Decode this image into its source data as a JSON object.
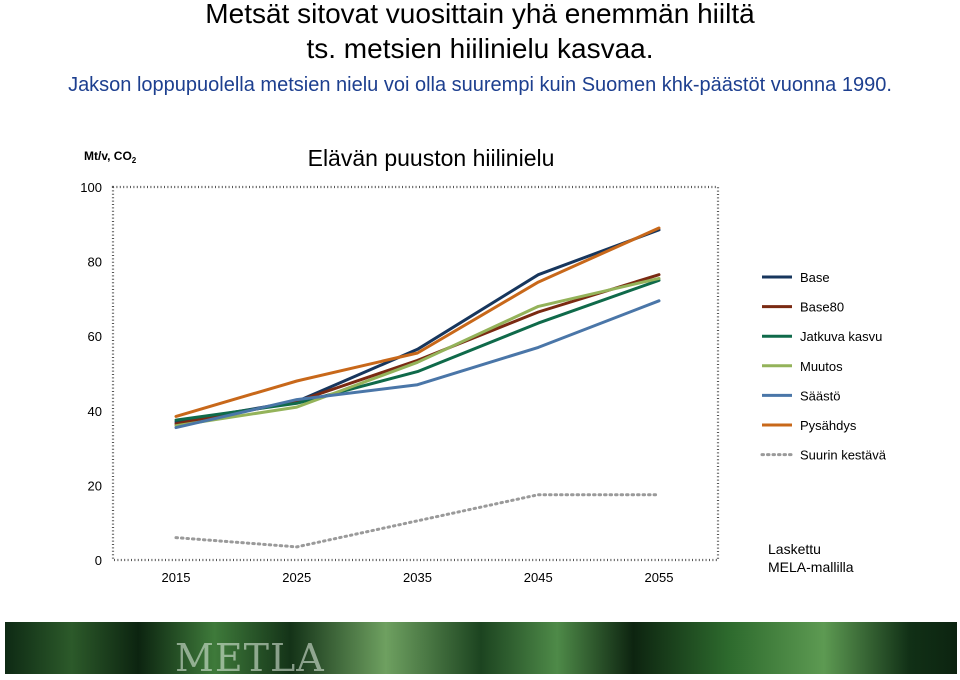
{
  "header": {
    "title_line1": "Metsät sitovat vuosittain yhä enemmän hiiltä",
    "title_line2": "ts. metsien hiilinielu kasvaa.",
    "subtitle": "Jakson loppupuolella metsien nielu voi olla suurempi kuin Suomen khk-päästöt vuonna 1990."
  },
  "chart_data": {
    "type": "line",
    "title": "Elävän puuston hiilinielu",
    "ylabel": "Mt/v, CO",
    "ylabel_subscript": "2",
    "xlabel": "",
    "ylim": [
      0,
      100
    ],
    "yticks": [
      0,
      20,
      40,
      60,
      80,
      100
    ],
    "x": [
      2015,
      2025,
      2035,
      2045,
      2055
    ],
    "grid": false,
    "legend_position": "right",
    "series": [
      {
        "name": "Base",
        "values": [
          37,
          42.5,
          56.5,
          76.5,
          88.5
        ],
        "color": "#17365d",
        "dash": "solid"
      },
      {
        "name": "Base80",
        "values": [
          36.5,
          42.5,
          53.5,
          66.5,
          76.5
        ],
        "color": "#7a2a12",
        "dash": "solid"
      },
      {
        "name": "Jatkuva kasvu",
        "values": [
          37.5,
          42,
          50.5,
          63.5,
          75
        ],
        "color": "#0f6a4a",
        "dash": "solid"
      },
      {
        "name": "Muutos",
        "values": [
          36,
          41,
          53,
          68,
          75.5
        ],
        "color": "#94b35a",
        "dash": "solid"
      },
      {
        "name": "Säästö",
        "values": [
          35.5,
          43,
          47,
          57,
          69.5
        ],
        "color": "#4a76a8",
        "dash": "solid"
      },
      {
        "name": "Pysähdys",
        "values": [
          38.5,
          48,
          55.5,
          74.5,
          89
        ],
        "color": "#c8681a",
        "dash": "solid"
      },
      {
        "name": "Suurin kestävä",
        "values": [
          6,
          3.5,
          10.5,
          17.5,
          17.5
        ],
        "color": "#9a9a9a",
        "dash": "dotted"
      }
    ],
    "annotation": "Laskettu MELA-mallilla"
  },
  "footer": {
    "logo_text": "METLA"
  }
}
